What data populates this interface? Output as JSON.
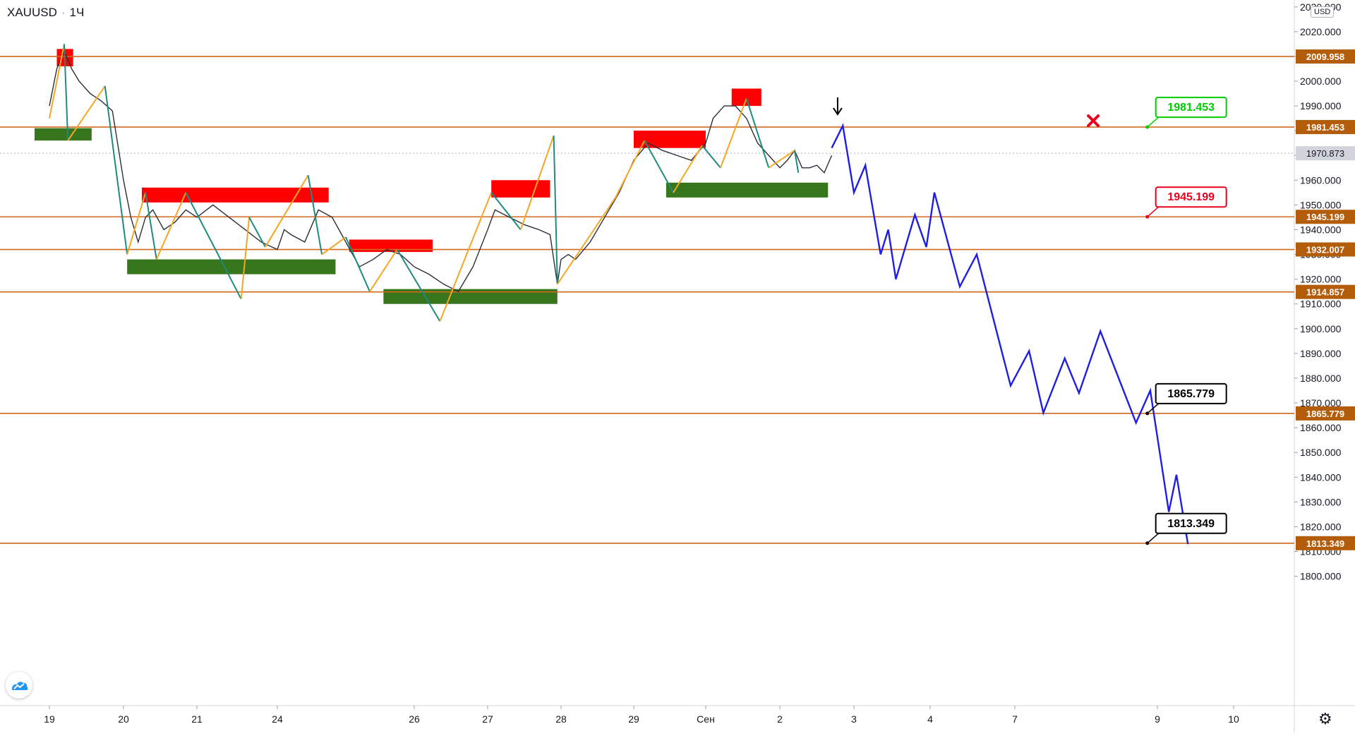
{
  "header": {
    "symbol": "XAUUSD",
    "interval": "1Ч",
    "separator": "·"
  },
  "currency": "USD",
  "colors": {
    "level_line": "#d2691e",
    "level_tag": "#b35c0a",
    "supply_zone": "#ff0000",
    "demand_zone": "#38761d",
    "zigzag_up": "#f5a623",
    "zigzag_down": "#1f8a80",
    "projection": "#1e1ee6",
    "green_label": "#00cc00",
    "red_label": "#e8001c",
    "current_price_tag": "#d1d4dc"
  },
  "chart_data": {
    "type": "line",
    "title": "",
    "xlabel": "",
    "ylabel": "",
    "ylim": [
      1800,
      2030
    ],
    "price_axis_ticks": [
      "1800.000",
      "1810.000",
      "1820.000",
      "1830.000",
      "1840.000",
      "1850.000",
      "1860.000",
      "1870.000",
      "1880.000",
      "1890.000",
      "1900.000",
      "1910.000",
      "1920.000",
      "1930.000",
      "1940.000",
      "1950.000",
      "1960.000",
      "1970.000",
      "1980.000",
      "1990.000",
      "2000.000",
      "2010.000",
      "2020.000",
      "2030.000"
    ],
    "time_axis_ticks": [
      {
        "label": "19",
        "slot": 0
      },
      {
        "label": "20",
        "slot": 1
      },
      {
        "label": "21",
        "slot": 2
      },
      {
        "label": "24",
        "slot": 3
      },
      {
        "label": "26",
        "slot": 5
      },
      {
        "label": "27",
        "slot": 6
      },
      {
        "label": "28",
        "slot": 7
      },
      {
        "label": "29",
        "slot": 8
      },
      {
        "label": "Сен",
        "slot": 9
      },
      {
        "label": "2",
        "slot": 10
      },
      {
        "label": "3",
        "slot": 11
      },
      {
        "label": "4",
        "slot": 12
      },
      {
        "label": "7",
        "slot": 13
      },
      {
        "label": "9",
        "slot": 14
      },
      {
        "label": "10",
        "slot": 15
      }
    ],
    "grid": false,
    "levels": [
      "2009.958",
      "1981.453",
      "1945.199",
      "1932.007",
      "1914.857",
      "1865.779",
      "1813.349"
    ],
    "current_price": "1970.873",
    "price_series": [
      [
        0.0,
        1990
      ],
      [
        0.1,
        2005
      ],
      [
        0.2,
        2012
      ],
      [
        0.3,
        2005
      ],
      [
        0.4,
        2000
      ],
      [
        0.55,
        1995
      ],
      [
        0.7,
        1992
      ],
      [
        0.85,
        1988
      ],
      [
        1.0,
        1960
      ],
      [
        1.1,
        1945
      ],
      [
        1.2,
        1935
      ],
      [
        1.3,
        1945
      ],
      [
        1.4,
        1948
      ],
      [
        1.55,
        1940
      ],
      [
        1.7,
        1943
      ],
      [
        1.85,
        1948
      ],
      [
        2.0,
        1945
      ],
      [
        2.2,
        1950
      ],
      [
        2.4,
        1945
      ],
      [
        2.6,
        1940
      ],
      [
        2.8,
        1935
      ],
      [
        3.0,
        1932
      ],
      [
        3.1,
        1940
      ],
      [
        3.2,
        1938
      ],
      [
        3.4,
        1935
      ],
      [
        3.6,
        1948
      ],
      [
        3.8,
        1945
      ],
      [
        4.0,
        1935
      ],
      [
        4.2,
        1925
      ],
      [
        4.4,
        1928
      ],
      [
        4.6,
        1932
      ],
      [
        4.8,
        1930
      ],
      [
        5.0,
        1925
      ],
      [
        5.2,
        1922
      ],
      [
        5.4,
        1918
      ],
      [
        5.6,
        1915
      ],
      [
        5.8,
        1925
      ],
      [
        6.0,
        1940
      ],
      [
        6.1,
        1948
      ],
      [
        6.3,
        1945
      ],
      [
        6.5,
        1942
      ],
      [
        6.7,
        1940
      ],
      [
        6.85,
        1938
      ],
      [
        6.95,
        1918
      ],
      [
        7.0,
        1928
      ],
      [
        7.1,
        1930
      ],
      [
        7.2,
        1928
      ],
      [
        7.4,
        1935
      ],
      [
        7.6,
        1945
      ],
      [
        7.8,
        1955
      ],
      [
        8.0,
        1968
      ],
      [
        8.2,
        1975
      ],
      [
        8.4,
        1972
      ],
      [
        8.6,
        1970
      ],
      [
        8.8,
        1968
      ],
      [
        9.0,
        1975
      ],
      [
        9.1,
        1985
      ],
      [
        9.25,
        1990
      ],
      [
        9.4,
        1990
      ],
      [
        9.55,
        1985
      ],
      [
        9.7,
        1975
      ],
      [
        9.85,
        1970
      ],
      [
        10.0,
        1965
      ],
      [
        10.1,
        1968
      ],
      [
        10.2,
        1972
      ],
      [
        10.3,
        1965
      ],
      [
        10.4,
        1965
      ],
      [
        10.5,
        1966
      ],
      [
        10.6,
        1963
      ],
      [
        10.7,
        1970
      ]
    ],
    "supply_zones": [
      {
        "x0": 0.1,
        "x1": 0.32,
        "y0": 2006,
        "y1": 2013
      },
      {
        "x0": 1.25,
        "x1": 3.75,
        "y0": 1951,
        "y1": 1957
      },
      {
        "x0": 4.05,
        "x1": 5.25,
        "y0": 1931,
        "y1": 1936
      },
      {
        "x0": 6.05,
        "x1": 6.85,
        "y0": 1953,
        "y1": 1960
      },
      {
        "x0": 8.0,
        "x1": 9.0,
        "y0": 1973,
        "y1": 1980
      },
      {
        "x0": 9.35,
        "x1": 9.75,
        "y0": 1990,
        "y1": 1997
      }
    ],
    "demand_zones": [
      {
        "x0": -0.2,
        "x1": 0.57,
        "y0": 1976,
        "y1": 1981
      },
      {
        "x0": 1.05,
        "x1": 3.85,
        "y0": 1922,
        "y1": 1928
      },
      {
        "x0": 4.55,
        "x1": 6.95,
        "y0": 1910,
        "y1": 1916
      },
      {
        "x0": 8.45,
        "x1": 10.65,
        "y0": 1953,
        "y1": 1959
      }
    ],
    "zigzag": [
      [
        0.0,
        1985
      ],
      [
        0.2,
        2015
      ],
      [
        0.25,
        1976
      ],
      [
        0.75,
        1998
      ],
      [
        1.05,
        1930
      ],
      [
        1.3,
        1955
      ],
      [
        1.45,
        1928
      ],
      [
        1.85,
        1955
      ],
      [
        2.55,
        1912
      ],
      [
        2.65,
        1945
      ],
      [
        2.85,
        1933
      ],
      [
        3.45,
        1962
      ],
      [
        3.65,
        1930
      ],
      [
        4.0,
        1937
      ],
      [
        4.35,
        1915
      ],
      [
        4.75,
        1932
      ],
      [
        5.35,
        1903
      ],
      [
        6.05,
        1955
      ],
      [
        6.45,
        1940
      ],
      [
        6.9,
        1978
      ],
      [
        6.95,
        1918
      ],
      [
        7.75,
        1953
      ],
      [
        8.15,
        1976
      ],
      [
        8.55,
        1955
      ],
      [
        8.95,
        1974
      ],
      [
        9.2,
        1965
      ],
      [
        9.55,
        1993
      ],
      [
        9.85,
        1965
      ],
      [
        10.2,
        1972
      ],
      [
        10.25,
        1963
      ]
    ],
    "projection": [
      [
        10.7,
        1973
      ],
      [
        10.85,
        1982
      ],
      [
        11.0,
        1955
      ],
      [
        11.15,
        1966
      ],
      [
        11.35,
        1930
      ],
      [
        11.45,
        1940
      ],
      [
        11.55,
        1920
      ],
      [
        11.8,
        1946
      ],
      [
        11.95,
        1933
      ],
      [
        12.05,
        1955
      ],
      [
        12.35,
        1917
      ],
      [
        12.55,
        1930
      ],
      [
        12.95,
        1877
      ],
      [
        13.1,
        1891
      ],
      [
        13.2,
        1866
      ],
      [
        13.35,
        1888
      ],
      [
        13.45,
        1874
      ],
      [
        13.6,
        1899
      ],
      [
        13.85,
        1862
      ],
      [
        13.95,
        1875
      ],
      [
        14.15,
        1826
      ],
      [
        14.25,
        1841
      ],
      [
        14.4,
        1813
      ]
    ],
    "annotations": [
      {
        "text": "1981.453",
        "type": "target-hit",
        "color": "green",
        "x": 13.85,
        "y": 1981.453
      },
      {
        "text": "1945.199",
        "type": "stop",
        "color": "red",
        "x": 13.85,
        "y": 1945.199
      },
      {
        "text": "1865.779",
        "type": "target",
        "color": "black",
        "x": 13.85,
        "y": 1865.779
      },
      {
        "text": "1813.349",
        "type": "target",
        "color": "black",
        "x": 13.85,
        "y": 1813.349
      }
    ],
    "markers": [
      {
        "kind": "down-arrow",
        "x": 10.78,
        "y": 1990
      },
      {
        "kind": "cross",
        "x": 13.55,
        "y": 1984
      }
    ]
  }
}
